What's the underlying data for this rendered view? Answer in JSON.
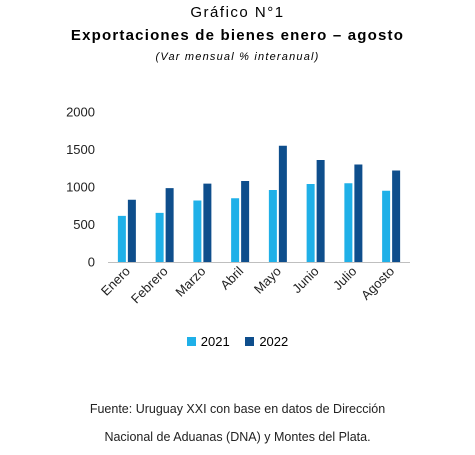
{
  "header": {
    "title": "Gráfico N°1",
    "subtitle": "Exportaciones de bienes enero – agosto",
    "note": "(Var mensual % interanual)"
  },
  "chart_data": {
    "type": "bar",
    "categories": [
      "Enero",
      "Febrero",
      "Marzo",
      "Abril",
      "Mayo",
      "Junio",
      "Julio",
      "Agosto"
    ],
    "series": [
      {
        "name": "2021",
        "values": [
          615,
          655,
          820,
          850,
          960,
          1040,
          1050,
          950
        ],
        "color": "#1fb0e8"
      },
      {
        "name": "2022",
        "values": [
          830,
          985,
          1045,
          1080,
          1550,
          1360,
          1300,
          1220
        ],
        "color": "#0e4e8c"
      }
    ],
    "yticks": [
      "2000",
      "1500",
      "1000",
      "500",
      "0"
    ],
    "ylim": [
      0,
      2000
    ],
    "legend": "bottom",
    "grid": false
  },
  "source": {
    "line1": "Fuente: Uruguay XXI con base en datos de Dirección",
    "line2": "Nacional de Aduanas (DNA) y Montes del Plata."
  }
}
